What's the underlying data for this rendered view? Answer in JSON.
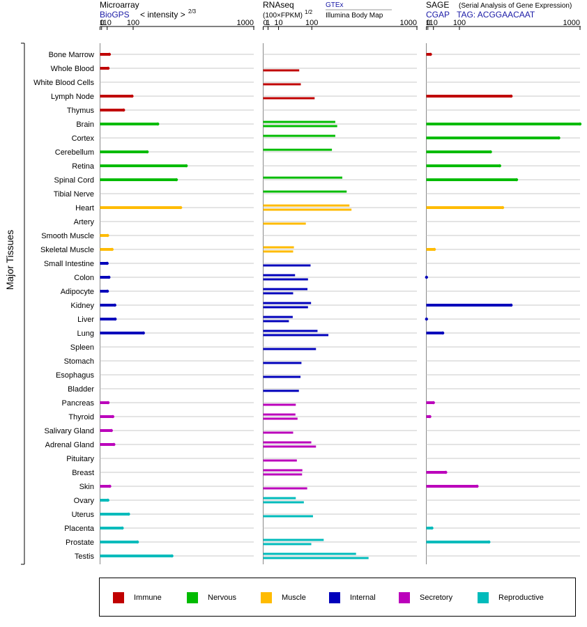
{
  "chart_data": {
    "type": "bar",
    "ylabel": "Major Tissues",
    "tissues": [
      "Bone Marrow",
      "Whole Blood",
      "White Blood Cells",
      "Lymph Node",
      "Thymus",
      "Brain",
      "Cortex",
      "Cerebellum",
      "Retina",
      "Spinal Cord",
      "Tibial Nerve",
      "Heart",
      "Artery",
      "Smooth Muscle",
      "Skeletal Muscle",
      "Small Intestine",
      "Colon",
      "Adipocyte",
      "Kidney",
      "Liver",
      "Lung",
      "Spleen",
      "Stomach",
      "Esophagus",
      "Bladder",
      "Pancreas",
      "Thyroid",
      "Salivary Gland",
      "Adrenal Gland",
      "Pituitary",
      "Breast",
      "Skin",
      "Ovary",
      "Uterus",
      "Placenta",
      "Prostate",
      "Testis"
    ],
    "categories": [
      "immune",
      "immune",
      "immune",
      "immune",
      "immune",
      "nervous",
      "nervous",
      "nervous",
      "nervous",
      "nervous",
      "nervous",
      "muscle",
      "muscle",
      "muscle",
      "muscle",
      "internal",
      "internal",
      "internal",
      "internal",
      "internal",
      "internal",
      "internal",
      "internal",
      "internal",
      "internal",
      "secretory",
      "secretory",
      "secretory",
      "secretory",
      "secretory",
      "secretory",
      "secretory",
      "reproductive",
      "reproductive",
      "reproductive",
      "reproductive",
      "reproductive"
    ],
    "colors": {
      "immune": "#c00000",
      "nervous": "#00bb00",
      "muscle": "#ffbb00",
      "internal": "#0000bb",
      "secretory": "#bb00bb",
      "reproductive": "#00bbbb"
    },
    "legend": [
      {
        "key": "immune",
        "label": "Immune"
      },
      {
        "key": "nervous",
        "label": "Nervous"
      },
      {
        "key": "muscle",
        "label": "Muscle"
      },
      {
        "key": "internal",
        "label": "Internal"
      },
      {
        "key": "secretory",
        "label": "Secretory"
      },
      {
        "key": "reproductive",
        "label": "Reproductive"
      }
    ],
    "panels": [
      {
        "id": "microarray",
        "title": "Microarray",
        "source": "BioGPS",
        "unit_label": "< intensity >",
        "unit_exp": "2/3",
        "exponent": 0.6667,
        "ticks": [
          "0",
          "1",
          "10",
          "100",
          "1000"
        ],
        "tick_values": [
          0,
          1,
          10,
          100,
          1000
        ],
        "values": [
          [
            15
          ],
          [
            12
          ],
          [
            null
          ],
          [
            95
          ],
          [
            60
          ],
          [
            230
          ],
          [
            null
          ],
          [
            170
          ],
          [
            420
          ],
          [
            350
          ],
          [
            null
          ],
          [
            380
          ],
          [
            null
          ],
          [
            11
          ],
          [
            22
          ],
          [
            10
          ],
          [
            14
          ],
          [
            10.5
          ],
          [
            30
          ],
          [
            31
          ],
          [
            150
          ],
          [
            null
          ],
          [
            null
          ],
          [
            null
          ],
          [
            null
          ],
          [
            12
          ],
          [
            24
          ],
          [
            20
          ],
          [
            27
          ],
          [
            null
          ],
          [
            null
          ],
          [
            16
          ],
          [
            11.5
          ],
          [
            80
          ],
          [
            55
          ],
          [
            120
          ],
          [
            320
          ]
        ]
      },
      {
        "id": "rnaseq",
        "title": "RNAseq",
        "unit_label": "(100×FPKM)",
        "unit_exp": "1/2",
        "exponent": 0.5,
        "source_a": "GTEx",
        "source_b": "Illumina Body Map",
        "ticks": [
          "0",
          "1",
          "10",
          "100",
          "1000"
        ],
        "tick_values": [
          0,
          1,
          10,
          100,
          1000
        ],
        "values": [
          [
            null,
            null
          ],
          [
            null,
            55
          ],
          [
            null,
            60
          ],
          [
            null,
            112
          ],
          [
            null,
            null
          ],
          [
            220,
            232
          ],
          [
            220,
            null
          ],
          [
            200,
            null
          ],
          [
            null,
            null
          ],
          [
            265,
            null
          ],
          [
            295,
            null
          ],
          [
            315,
            330
          ],
          [
            null,
            77
          ],
          [
            null,
            null
          ],
          [
            40,
            38
          ],
          [
            null,
            95
          ],
          [
            43,
            85
          ],
          [
            83,
            38
          ],
          [
            97,
            85
          ],
          [
            37,
            28
          ],
          [
            125,
            180
          ],
          [
            null,
            118
          ],
          [
            null,
            62
          ],
          [
            null,
            59
          ],
          [
            null,
            54
          ],
          [
            null,
            45
          ],
          [
            44,
            50
          ],
          [
            null,
            38
          ],
          [
            98,
            118
          ],
          [
            null,
            48
          ],
          [
            65,
            64
          ],
          [
            null,
            82
          ],
          [
            45,
            70
          ],
          [
            null,
            105
          ],
          [
            null,
            null
          ],
          [
            155,
            98
          ],
          [
            365,
            470
          ]
        ]
      },
      {
        "id": "sage",
        "title": "SAGE",
        "subtitle": "(Serial Analysis of Gene Expression)",
        "source": "CGAP",
        "tag_label": "TAG: ACGGAACAAT",
        "exponent": 0.6667,
        "ticks": [
          "0",
          "1",
          "10",
          "100",
          "1000"
        ],
        "tick_values": [
          0,
          1,
          10,
          100,
          1000
        ],
        "values": [
          [
            4.5
          ],
          [
            null
          ],
          [
            null
          ],
          [
            410
          ],
          [
            null
          ],
          [
            1000
          ],
          [
            800
          ],
          [
            270
          ],
          [
            330
          ],
          [
            450
          ],
          [
            null
          ],
          [
            350
          ],
          [
            null
          ],
          [
            null
          ],
          [
            12
          ],
          [
            null
          ],
          [
            0.05
          ],
          [
            null
          ],
          [
            410
          ],
          [
            0.05
          ],
          [
            35
          ],
          [
            null
          ],
          [
            null
          ],
          [
            null
          ],
          [
            null
          ],
          [
            10
          ],
          [
            3.5
          ],
          [
            null
          ],
          [
            null
          ],
          [
            null
          ],
          [
            45
          ],
          [
            190
          ],
          [
            null
          ],
          [
            null
          ],
          [
            7
          ],
          [
            260
          ],
          [
            null
          ]
        ]
      }
    ]
  }
}
